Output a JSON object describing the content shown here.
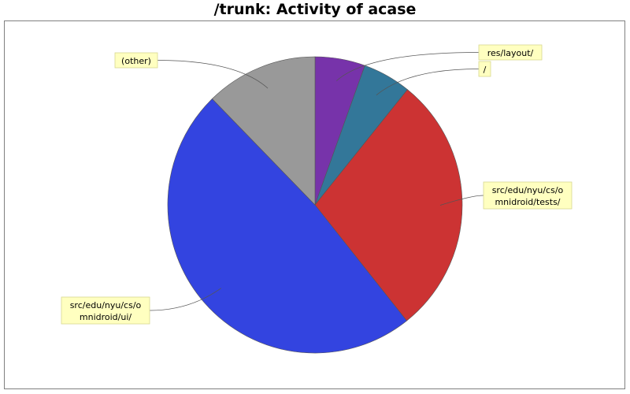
{
  "chart_data": {
    "type": "pie",
    "title": "/trunk: Activity of acase",
    "slices": [
      {
        "label": "res/layout/",
        "value": 5.5,
        "color": "#7733aa"
      },
      {
        "label": "/",
        "value": 5.3,
        "color": "#337799"
      },
      {
        "label": "src/edu/nyu/cs/omnidroid/tests/",
        "value": 28.5,
        "color": "#cc3333"
      },
      {
        "label": "src/edu/nyu/cs/omnidroid/ui/",
        "value": 48.4,
        "color": "#3344e0"
      },
      {
        "label": "(other)",
        "value": 12.3,
        "color": "#999999"
      }
    ],
    "label_lines": [
      [
        "res/layout/"
      ],
      [
        "/"
      ],
      [
        "src/edu/nyu/cs/o",
        "mnidroid/tests/"
      ],
      [
        "src/edu/nyu/cs/o",
        "mnidroid/ui/"
      ],
      [
        "(other)"
      ]
    ],
    "legend": "none"
  }
}
